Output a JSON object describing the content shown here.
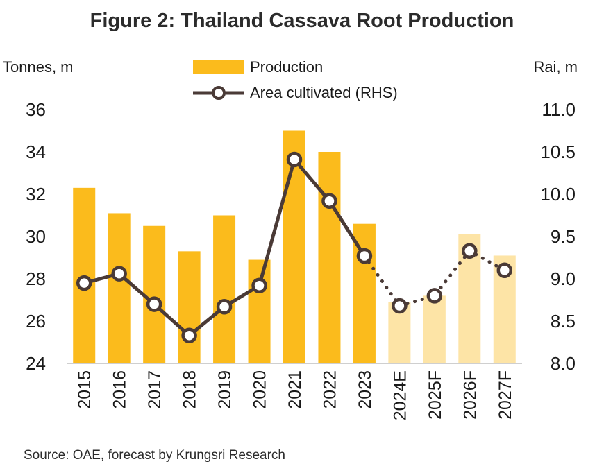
{
  "title": "Figure 2: Thailand Cassava Root Production",
  "source": "Source: OAE, forecast by Krungsri Research",
  "colors": {
    "actual_bar": "#fbbb1c",
    "forecast_bar": "#fde4a6",
    "line": "#4a3a36",
    "marker_fill": "#ffffff",
    "axis_text": "#1a1a1a"
  },
  "chart_data": {
    "type": "bar",
    "categories": [
      "2015",
      "2016",
      "2017",
      "2018",
      "2019",
      "2020",
      "2021",
      "2022",
      "2023",
      "2024E",
      "2025F",
      "2026F",
      "2027F"
    ],
    "forecast_start_index": 9,
    "left_axis_label": "Tonnes, m",
    "right_axis_label": "Rai, m",
    "left_ylim": [
      24,
      36
    ],
    "left_ticks": [
      24,
      26,
      28,
      30,
      32,
      34,
      36
    ],
    "right_ylim": [
      8.0,
      11.0
    ],
    "right_ticks": [
      "8.0",
      "8.5",
      "9.0",
      "9.5",
      "10.0",
      "10.5",
      "11.0"
    ],
    "grid": false,
    "legend_placement": "top-center",
    "series": [
      {
        "name": "Production",
        "type": "bar",
        "axis": "left",
        "values": [
          32.3,
          31.1,
          30.5,
          29.3,
          31.0,
          28.9,
          35.0,
          34.0,
          30.6,
          26.9,
          27.2,
          30.1,
          29.1
        ]
      },
      {
        "name": "Area cultivated (RHS)",
        "type": "line",
        "axis": "right",
        "values": [
          8.95,
          9.06,
          8.7,
          8.33,
          8.67,
          8.92,
          10.41,
          9.92,
          9.27,
          8.68,
          8.8,
          9.33,
          9.1
        ]
      }
    ]
  }
}
